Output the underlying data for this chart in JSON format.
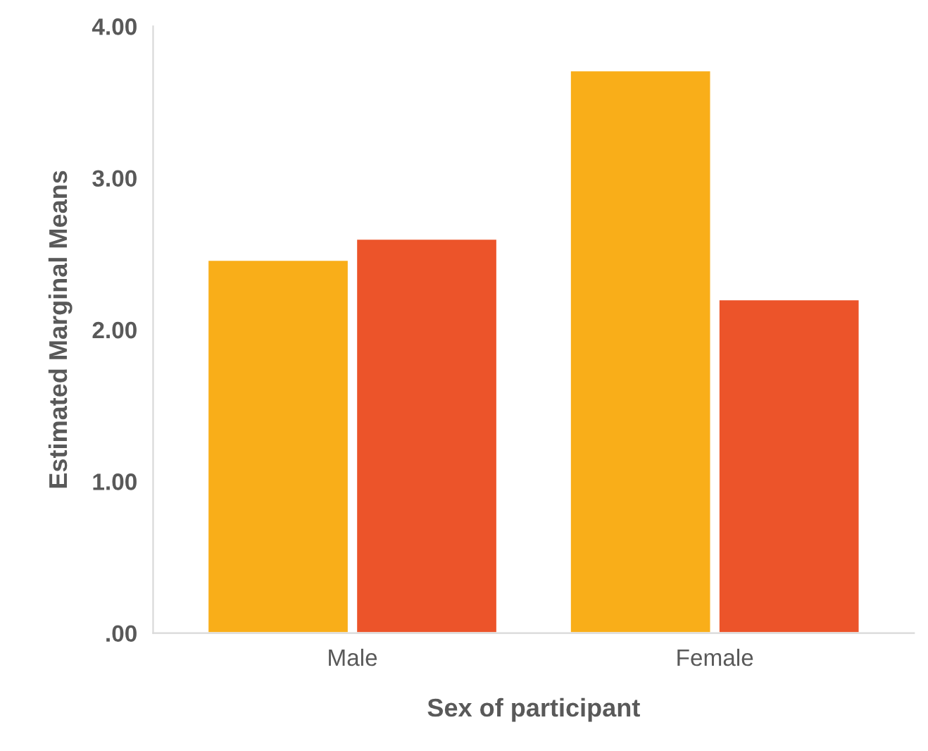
{
  "chart_data": {
    "type": "bar",
    "xlabel": "Sex of participant",
    "ylabel": "Estimated Marginal Means",
    "categories": [
      "Male",
      "Female"
    ],
    "series": [
      {
        "color": "#f9ae19",
        "values": [
          2.46,
          3.71
        ]
      },
      {
        "color": "#ec542a",
        "values": [
          2.6,
          2.2
        ]
      }
    ],
    "ylim": [
      0,
      4
    ],
    "yticks": [
      {
        "value": 0,
        "label": ".00"
      },
      {
        "value": 1,
        "label": "1.00"
      },
      {
        "value": 2,
        "label": "2.00"
      },
      {
        "value": 3,
        "label": "3.00"
      },
      {
        "value": 4,
        "label": "4.00"
      }
    ],
    "grid": false
  }
}
